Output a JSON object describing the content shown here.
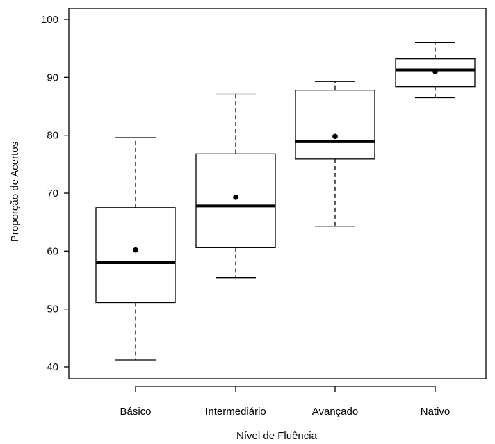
{
  "chart_data": {
    "type": "boxplot",
    "xlabel": "Nível de Fluência",
    "ylabel": "Proporção de Acertos",
    "ylim": [
      38,
      102
    ],
    "y_ticks": [
      40,
      50,
      60,
      70,
      80,
      90,
      100
    ],
    "grid": false,
    "categories": [
      "Básico",
      "Intermediário",
      "Avançado",
      "Nativo"
    ],
    "boxes": [
      {
        "category": "Básico",
        "whisker_low": 41.2,
        "q1": 51.1,
        "median": 58.0,
        "q3": 67.5,
        "whisker_high": 79.6,
        "mean": 60.2
      },
      {
        "category": "Intermediário",
        "whisker_low": 55.4,
        "q1": 60.6,
        "median": 67.8,
        "q3": 76.8,
        "whisker_high": 87.1,
        "mean": 69.3
      },
      {
        "category": "Avançado",
        "whisker_low": 64.2,
        "q1": 75.9,
        "median": 78.9,
        "q3": 87.8,
        "whisker_high": 89.3,
        "mean": 79.8
      },
      {
        "category": "Nativo",
        "whisker_low": 86.5,
        "q1": 88.4,
        "median": 91.3,
        "q3": 93.2,
        "whisker_high": 96.0,
        "mean": 91.0
      }
    ]
  }
}
